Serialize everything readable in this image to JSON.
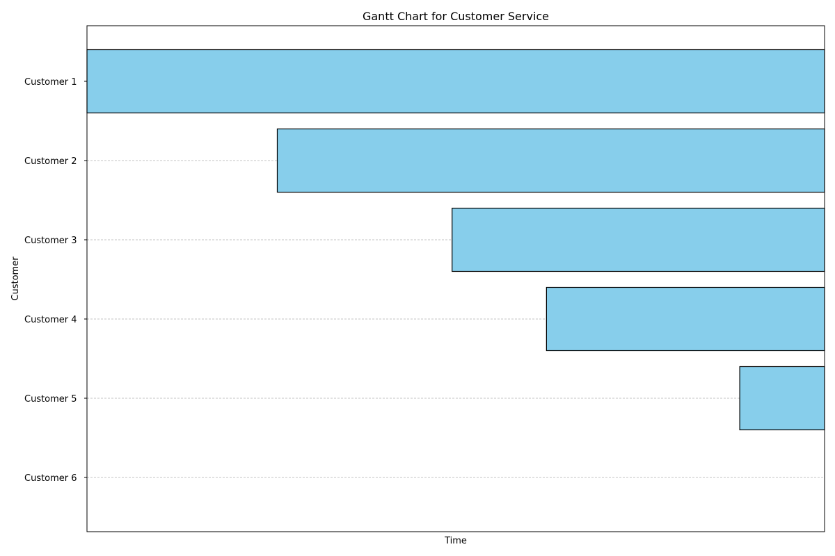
{
  "chart_data": {
    "type": "bar",
    "orientation": "horizontal",
    "title": "Gantt Chart for Customer Service",
    "xlabel": "Time",
    "ylabel": "Customer",
    "categories": [
      "Customer 1",
      "Customer 2",
      "Customer 3",
      "Customer 4",
      "Customer 5",
      "Customer 6"
    ],
    "series": [
      {
        "starts": [
          0.0,
          0.258,
          0.495,
          0.623,
          0.885,
          1.0
        ],
        "ends": [
          1.0,
          1.0,
          1.0,
          1.0,
          1.0,
          1.0
        ]
      }
    ],
    "xlim": [
      0,
      1
    ],
    "x_ticks_visible": false,
    "grid": "horizontal dashed",
    "colors": {
      "bar_fill": "#87CEEB",
      "bar_edge": "#000000",
      "grid": "#b0b0b0"
    }
  }
}
